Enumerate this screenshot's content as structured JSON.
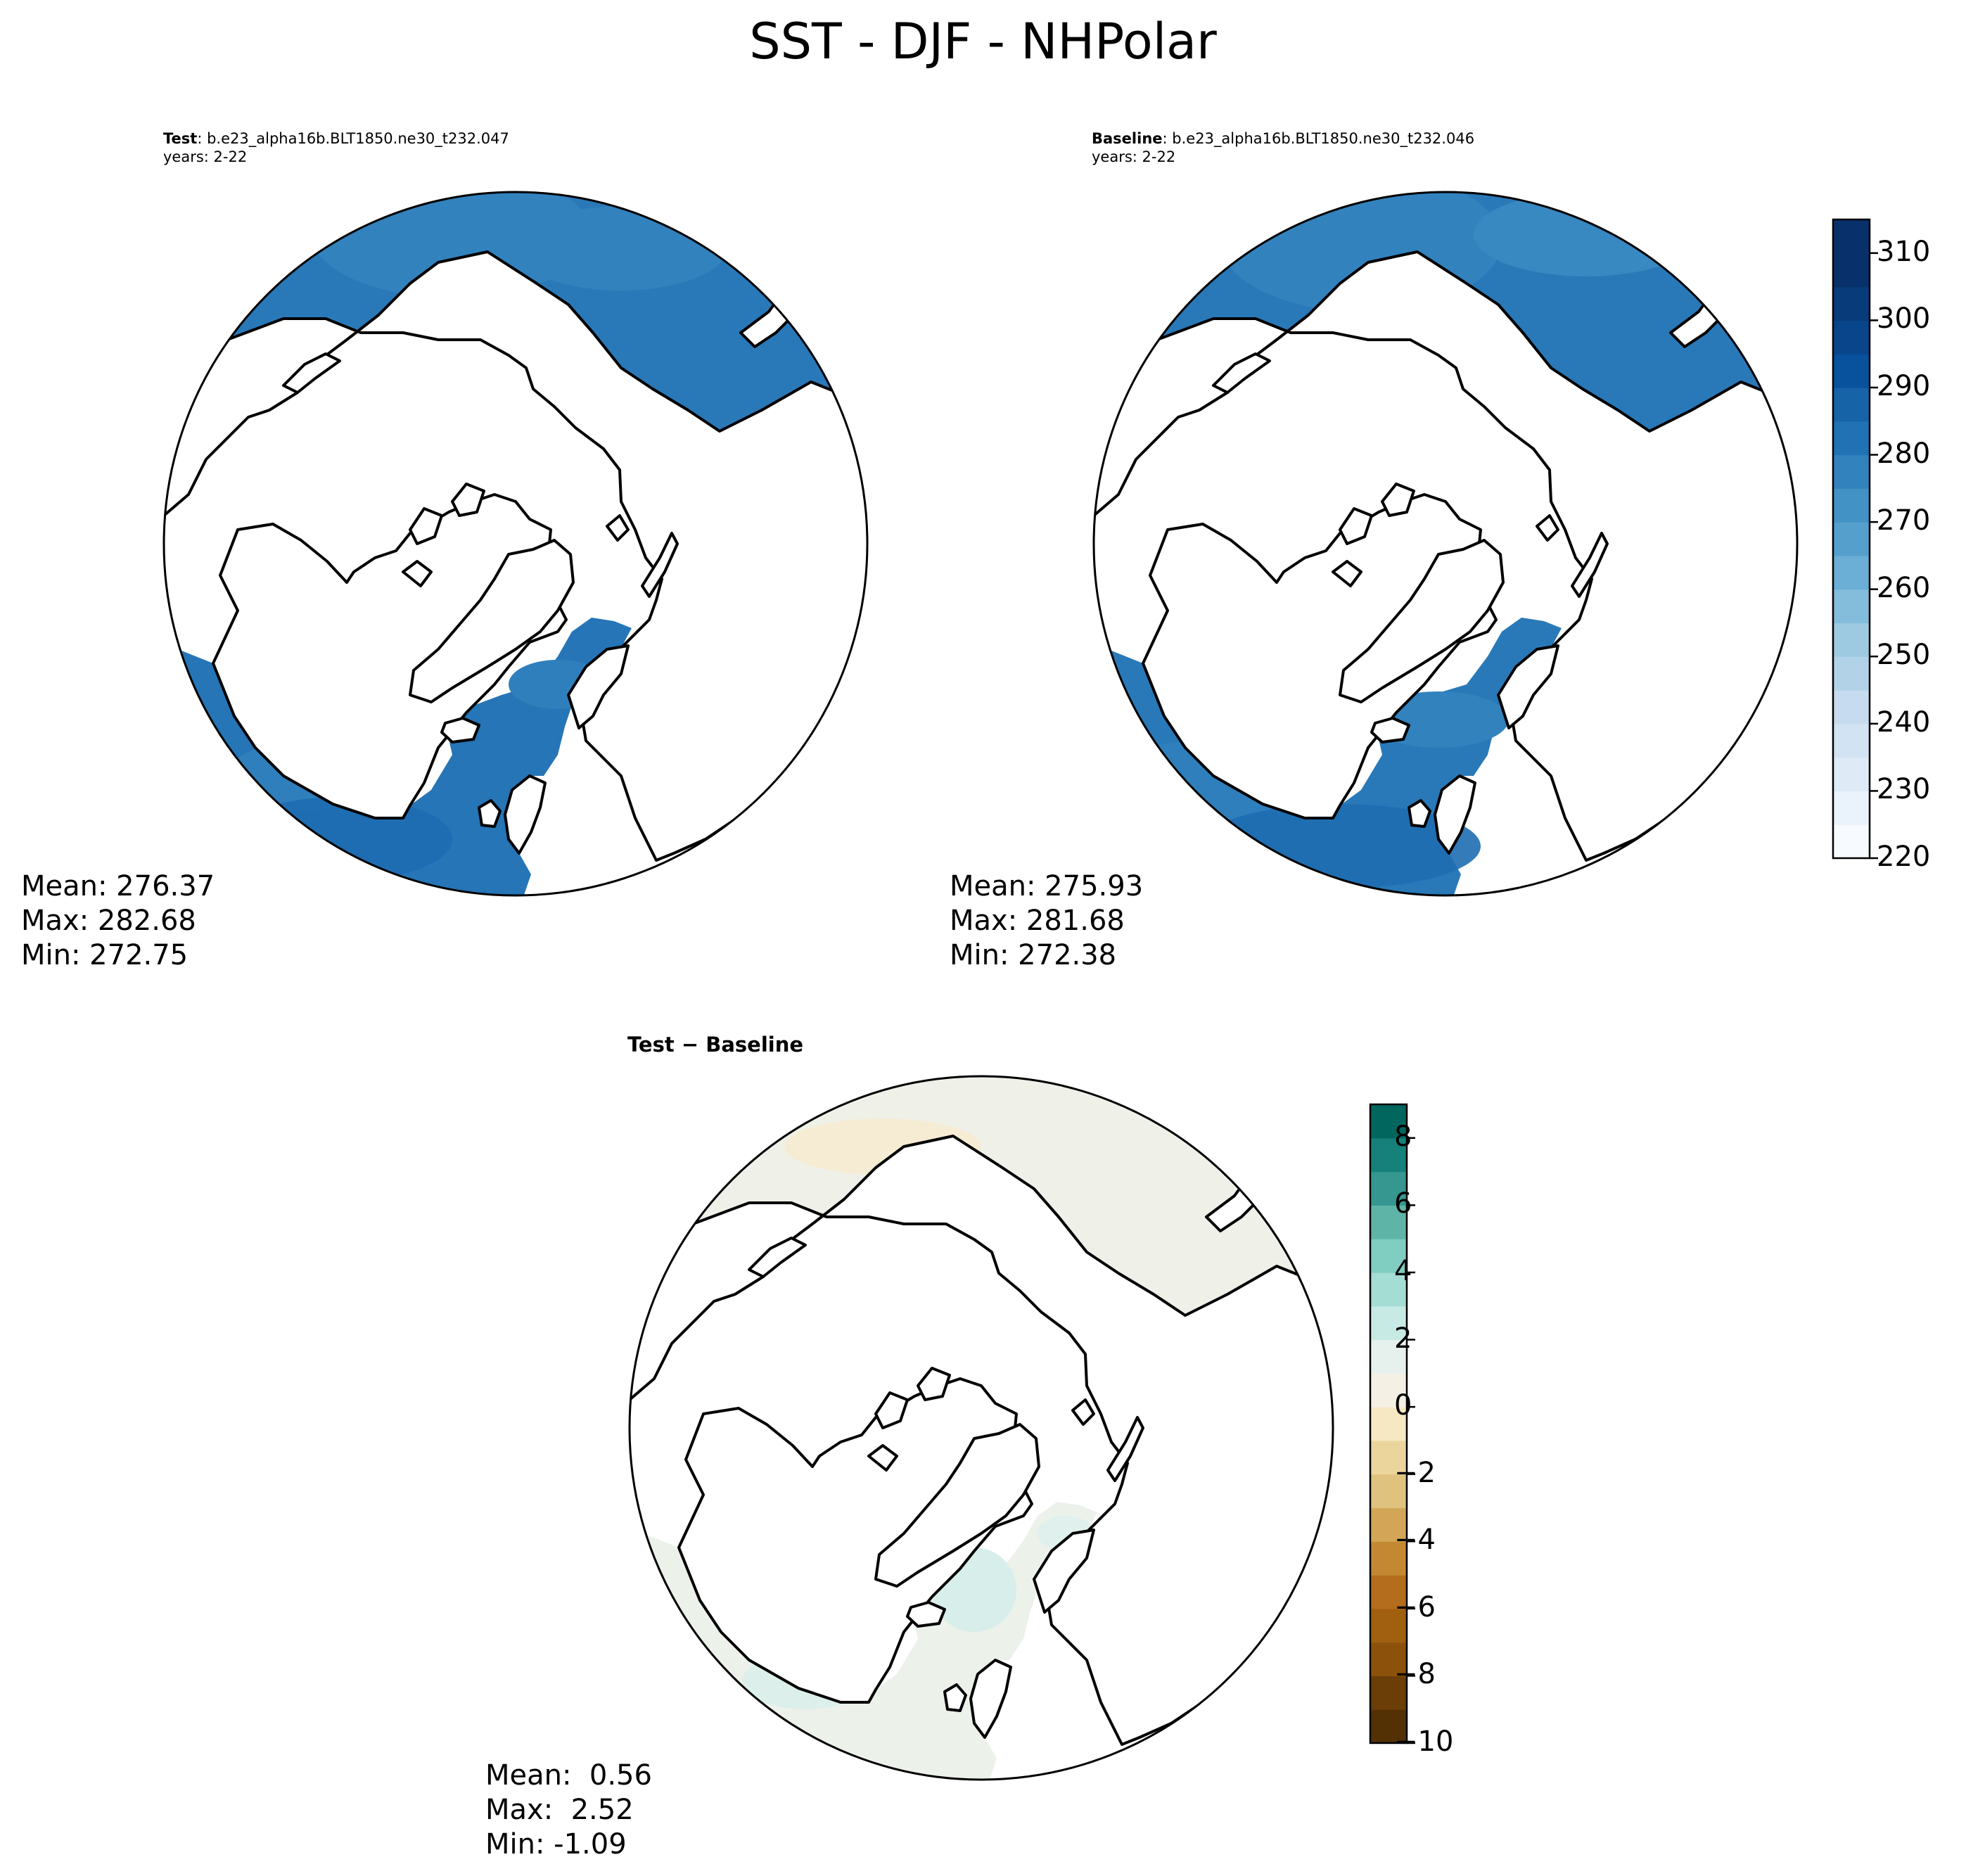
{
  "suptitle": "SST - DJF - NHPolar",
  "test_panel": {
    "label": "Test",
    "case": "b.e23_alpha16b.BLT1850.ne30_t232.047",
    "years": "years: 2-22",
    "stats": {
      "mean": "Mean: 276.37",
      "max": "Max: 282.68",
      "min": "Min: 272.75"
    }
  },
  "baseline_panel": {
    "label": "Baseline",
    "case": "b.e23_alpha16b.BLT1850.ne30_t232.046",
    "years": "years: 2-22",
    "stats": {
      "mean": "Mean: 275.93",
      "max": "Max: 281.68",
      "min": "Min: 272.38"
    }
  },
  "diff_panel": {
    "title": "Test − Baseline",
    "stats": {
      "mean": "Mean:  0.56",
      "max": "Max:  2.52",
      "min": "Min: -1.09"
    }
  },
  "chart_data": [
    {
      "type": "heatmap",
      "projection": "north-polar-stereographic",
      "title": "Test: b.e23_alpha16b.BLT1850.ne30_t232.047",
      "variable": "SST",
      "season": "DJF",
      "region": "NHPolar",
      "mean": 276.37,
      "max": 282.68,
      "min": 272.75
    },
    {
      "type": "heatmap",
      "projection": "north-polar-stereographic",
      "title": "Baseline: b.e23_alpha16b.BLT1850.ne30_t232.046",
      "variable": "SST",
      "season": "DJF",
      "region": "NHPolar",
      "mean": 275.93,
      "max": 281.68,
      "min": 272.38,
      "colorbar": {
        "colormap": "Blues",
        "range": [
          220,
          315
        ],
        "levels": [
          220,
          225,
          230,
          235,
          240,
          245,
          250,
          255,
          260,
          265,
          270,
          275,
          280,
          285,
          290,
          295,
          300,
          305,
          310,
          315
        ],
        "ticks": [
          220,
          230,
          240,
          250,
          260,
          270,
          280,
          290,
          300,
          310
        ],
        "tick_labels": [
          "220",
          "230",
          "240",
          "250",
          "260",
          "270",
          "280",
          "290",
          "300",
          "310"
        ],
        "colors": [
          "#f7fbff",
          "#eaf3fb",
          "#deebf7",
          "#d2e3f3",
          "#c6dbef",
          "#b2d2e8",
          "#9ecae1",
          "#84bcdb",
          "#6baed6",
          "#559fcd",
          "#4292c6",
          "#3282be",
          "#2171b5",
          "#1763a8",
          "#08519c",
          "#08458a",
          "#083b7a",
          "#08306b",
          "#08306b"
        ]
      }
    },
    {
      "type": "heatmap",
      "projection": "north-polar-stereographic",
      "title": "Test − Baseline",
      "mean": 0.56,
      "max": 2.52,
      "min": -1.09,
      "colorbar": {
        "colormap": "BrBG",
        "range": [
          -10,
          9
        ],
        "levels": [
          -10,
          -9,
          -8,
          -7,
          -6,
          -5,
          -4,
          -3,
          -2,
          -1,
          0,
          1,
          2,
          3,
          4,
          5,
          6,
          7,
          8,
          9
        ],
        "ticks": [
          -10,
          -8,
          -6,
          -4,
          -2,
          0,
          2,
          4,
          6,
          8
        ],
        "tick_labels": [
          "−10",
          "−8",
          "−6",
          "−4",
          "−2",
          "0",
          "2",
          "4",
          "6",
          "8"
        ],
        "colors": [
          "#543005",
          "#6b3d07",
          "#8c510a",
          "#a1600f",
          "#b46d1c",
          "#c48832",
          "#d3a657",
          "#dfc27d",
          "#ecd59d",
          "#f6e8c3",
          "#f5f0e4",
          "#e6f1ee",
          "#c7eae5",
          "#a4ddd4",
          "#80cdc1",
          "#5fb4a8",
          "#35978f",
          "#16817a",
          "#01665e",
          "#003c30"
        ]
      }
    }
  ]
}
